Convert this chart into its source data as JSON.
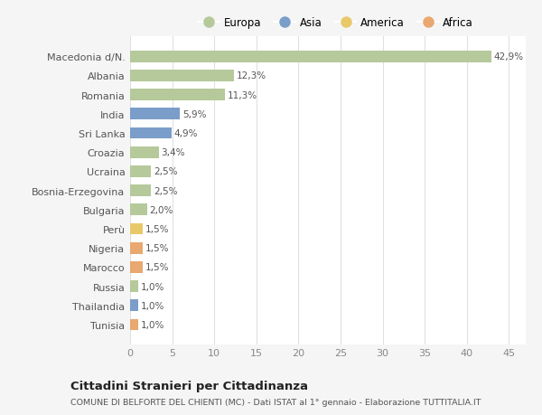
{
  "categories": [
    "Macedonia d/N.",
    "Albania",
    "Romania",
    "India",
    "Sri Lanka",
    "Croazia",
    "Ucraina",
    "Bosnia-Erzegovina",
    "Bulgaria",
    "Perù",
    "Nigeria",
    "Marocco",
    "Russia",
    "Thailandia",
    "Tunisia"
  ],
  "values": [
    42.9,
    12.3,
    11.3,
    5.9,
    4.9,
    3.4,
    2.5,
    2.5,
    2.0,
    1.5,
    1.5,
    1.5,
    1.0,
    1.0,
    1.0
  ],
  "labels": [
    "42,9%",
    "12,3%",
    "11,3%",
    "5,9%",
    "4,9%",
    "3,4%",
    "2,5%",
    "2,5%",
    "2,0%",
    "1,5%",
    "1,5%",
    "1,5%",
    "1,0%",
    "1,0%",
    "1,0%"
  ],
  "colors": [
    "#b5c99a",
    "#b5c99a",
    "#b5c99a",
    "#7b9dc9",
    "#7b9dc9",
    "#b5c99a",
    "#b5c99a",
    "#b5c99a",
    "#b5c99a",
    "#e8c96a",
    "#e8a870",
    "#e8a870",
    "#b5c99a",
    "#7b9dc9",
    "#e8a870"
  ],
  "legend_labels": [
    "Europa",
    "Asia",
    "America",
    "Africa"
  ],
  "legend_colors": [
    "#b5c99a",
    "#7b9dc9",
    "#e8c96a",
    "#e8a870"
  ],
  "title": "Cittadini Stranieri per Cittadinanza",
  "subtitle": "COMUNE DI BELFORTE DEL CHIENTI (MC) - Dati ISTAT al 1° gennaio - Elaborazione TUTTITALIA.IT",
  "xlim": [
    0,
    47
  ],
  "xticks": [
    0,
    5,
    10,
    15,
    20,
    25,
    30,
    35,
    40,
    45
  ],
  "fig_bg_color": "#f5f5f5",
  "plot_bg_color": "#ffffff",
  "grid_color": "#e0e0e0"
}
